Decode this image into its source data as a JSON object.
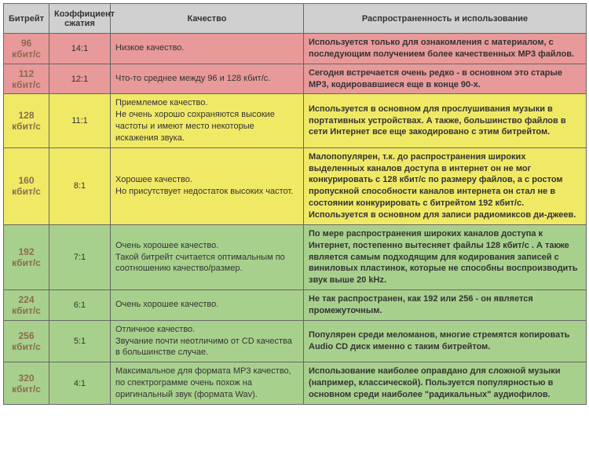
{
  "headers": {
    "bitrate": "Битрейт",
    "ratio": "Коэффициент сжатия",
    "quality": "Качество",
    "usage": "Распространенность и использование"
  },
  "column_widths": {
    "bitrate": 58,
    "ratio": 78,
    "quality": 246,
    "usage": 360
  },
  "colors": {
    "header_bg": "#d0d0d0",
    "pink": "#e89999",
    "yellow": "#f0e966",
    "green": "#a8d08d",
    "border": "#666666",
    "bitrate_text": "#8b6a4f",
    "text": "#333333"
  },
  "typography": {
    "header_fontsize": 11,
    "bitrate_fontsize": 12,
    "cell_fontsize": 11,
    "font_family": "Arial, sans-serif"
  },
  "rows": [
    {
      "bitrate": "96 кбит/с",
      "ratio": "14:1",
      "quality": "Низкое качество.",
      "usage": "Используется только для ознакомления с  материалом, с последующим получением более качественных MP3 файлов.",
      "bg": "pink"
    },
    {
      "bitrate": "112 кбит/с",
      "ratio": "12:1",
      "quality": "Что-то среднее между 96 и 128 кбит/с.",
      "usage": "Сегодня встречается очень редко - в основном это старые MP3, кодировавшиеся еще в конце 90-х.",
      "bg": "pink"
    },
    {
      "bitrate": "128 кбит/с",
      "ratio": "11:1",
      "quality": "Приемлемое качество.\nНе очень хорошо сохраняются высокие частоты и имеют место некоторые искажения звука.",
      "usage": "Используется в основном для прослушивания музыки в портативных устройствах. А также, большинство файлов в сети Интернет все еще закодировано с этим битрейтом.",
      "bg": "yellow"
    },
    {
      "bitrate": "160 кбит/с",
      "ratio": "8:1",
      "quality": "Хорошее качество.\nНо присутствует недостаток высоких частот.",
      "usage": "Малопопулярен, т.к.  до распространения широких выделенных каналов доступа в интернет он не мог конкурировать с 128 кбит/с  по размеру файлов, а с ростом пропускной способности каналов интернета он стал не в состоянии конкурировать с битрейтом 192 кбит/с. Используется в основном для записи радиомиксов ди-джеев.",
      "bg": "yellow"
    },
    {
      "bitrate": "192 кбит/с",
      "ratio": "7:1",
      "quality": "Очень хорошее качество.\nТакой битрейт считается оптимальным по соотношению качество/размер.",
      "usage": "По мере распространения широких каналов доступа к Интернет, постепенно вытесняет файлы 128 кбит/с . А также является самым подходящим для кодирования записей с виниловых пластинок, которые не способны воспроизводить звук выше 20 kHz.",
      "bg": "green"
    },
    {
      "bitrate": "224 кбит/с",
      "ratio": "6:1",
      "quality": "Очень хорошее качество.",
      "usage": "Не так распространен, как 192 или 256 - он является промежуточным.",
      "bg": "green"
    },
    {
      "bitrate": "256 кбит/с",
      "ratio": "5:1",
      "quality": "Отличное качество.\nЗвучание почти неотличимо от CD качества в большинстве случае.",
      "usage": "Популярен среди меломанов, многие стремятся копировать Audio CD диск именно с таким битрейтом.",
      "bg": "green"
    },
    {
      "bitrate": "320 кбит/с",
      "ratio": "4:1",
      "quality": "Максимальное для формата MP3 качество, по спектрограмме очень похож на оригинальный звук (формата Wav).",
      "usage": "Использование наиболее оправдано для сложной музыки (например, классической). Пользуется популярностью в основном среди наиболее \"радикальных\" аудиофилов.",
      "bg": "green"
    }
  ]
}
